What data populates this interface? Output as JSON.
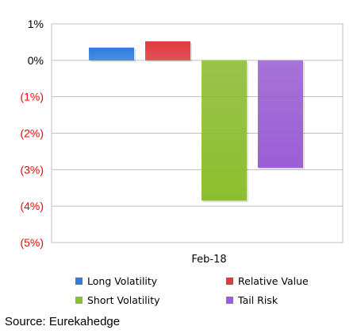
{
  "chart_data": {
    "type": "bar",
    "categories": [
      "Feb-18"
    ],
    "series": [
      {
        "name": "Long Volatility",
        "values": [
          0.35
        ],
        "color": "#2f7de1"
      },
      {
        "name": "Relative Value",
        "values": [
          0.52
        ],
        "color": "#e03a3e"
      },
      {
        "name": "Short Volatility",
        "values": [
          -3.85
        ],
        "color": "#8cbf2f"
      },
      {
        "name": "Tail Risk",
        "values": [
          -2.95
        ],
        "color": "#9b5fd6"
      }
    ],
    "ylim": [
      -5,
      1
    ],
    "yticks": [
      {
        "value": 1,
        "label": "1%"
      },
      {
        "value": 0,
        "label": "0%"
      },
      {
        "value": -1,
        "label": "(1%)"
      },
      {
        "value": -2,
        "label": "(2%)"
      },
      {
        "value": -3,
        "label": "(3%)"
      },
      {
        "value": -4,
        "label": "(4%)"
      },
      {
        "value": -5,
        "label": "(5%)"
      }
    ],
    "negative_tick_color": "#ff0000",
    "positive_tick_color": "#000000",
    "grid": true,
    "legend_position": "bottom"
  },
  "source_text": "Source: Eurekahedge"
}
